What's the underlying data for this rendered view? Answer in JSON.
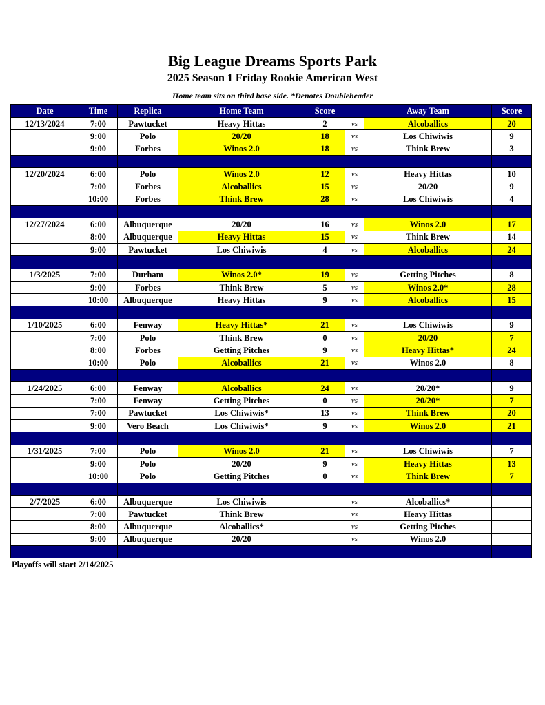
{
  "title": "Big League Dreams Sports Park",
  "subtitle": "2025 Season 1 Friday Rookie American West",
  "note": "Home team sits on third base side.  *Denotes Doubleheader",
  "highlight_color": "#ffff00",
  "header_color": "#000080",
  "columns": [
    "Date",
    "Time",
    "Replica",
    "Home Team",
    "Score",
    "",
    "Away Team",
    "Score"
  ],
  "vs_label": "vs",
  "groups": [
    {
      "date": "12/13/2024",
      "games": [
        {
          "time": "7:00",
          "replica": "Pawtucket",
          "home": "Heavy Hittas",
          "home_score": "2",
          "away": "Alcoballics",
          "away_score": "20",
          "winner": "away"
        },
        {
          "time": "9:00",
          "replica": "Polo",
          "home": "20/20",
          "home_score": "18",
          "away": "Los Chiwiwis",
          "away_score": "9",
          "winner": "home"
        },
        {
          "time": "9:00",
          "replica": "Forbes",
          "home": "Winos 2.0",
          "home_score": "18",
          "away": "Think Brew",
          "away_score": "3",
          "winner": "home"
        }
      ]
    },
    {
      "date": "12/20/2024",
      "games": [
        {
          "time": "6:00",
          "replica": "Polo",
          "home": "Winos 2.0",
          "home_score": "12",
          "away": "Heavy Hittas",
          "away_score": "10",
          "winner": "home"
        },
        {
          "time": "7:00",
          "replica": "Forbes",
          "home": "Alcoballics",
          "home_score": "15",
          "away": "20/20",
          "away_score": "9",
          "winner": "home"
        },
        {
          "time": "10:00",
          "replica": "Forbes",
          "home": "Think Brew",
          "home_score": "28",
          "away": "Los Chiwiwis",
          "away_score": "4",
          "winner": "home"
        }
      ]
    },
    {
      "date": "12/27/2024",
      "games": [
        {
          "time": "6:00",
          "replica": "Albuquerque",
          "home": "20/20",
          "home_score": "16",
          "away": "Winos 2.0",
          "away_score": "17",
          "winner": "away"
        },
        {
          "time": "8:00",
          "replica": "Albuquerque",
          "home": "Heavy Hittas",
          "home_score": "15",
          "away": "Think Brew",
          "away_score": "14",
          "winner": "home"
        },
        {
          "time": "9:00",
          "replica": "Pawtucket",
          "home": "Los Chiwiwis",
          "home_score": "4",
          "away": "Alcoballics",
          "away_score": "24",
          "winner": "away"
        }
      ]
    },
    {
      "date": "1/3/2025",
      "games": [
        {
          "time": "7:00",
          "replica": "Durham",
          "home": "Winos 2.0*",
          "home_score": "19",
          "away": "Getting Pitches",
          "away_score": "8",
          "winner": "home"
        },
        {
          "time": "9:00",
          "replica": "Forbes",
          "home": "Think Brew",
          "home_score": "5",
          "away": "Winos 2.0*",
          "away_score": "28",
          "winner": "away"
        },
        {
          "time": "10:00",
          "replica": "Albuquerque",
          "home": "Heavy Hittas",
          "home_score": "9",
          "away": "Alcoballics",
          "away_score": "15",
          "winner": "away"
        }
      ]
    },
    {
      "date": "1/10/2025",
      "games": [
        {
          "time": "6:00",
          "replica": "Fenway",
          "home": "Heavy Hittas*",
          "home_score": "21",
          "away": "Los Chiwiwis",
          "away_score": "9",
          "winner": "home"
        },
        {
          "time": "7:00",
          "replica": "Polo",
          "home": "Think Brew",
          "home_score": "0",
          "away": "20/20",
          "away_score": "7",
          "winner": "away"
        },
        {
          "time": "8:00",
          "replica": "Forbes",
          "home": "Getting Pitches",
          "home_score": "9",
          "away": "Heavy Hittas*",
          "away_score": "24",
          "winner": "away"
        },
        {
          "time": "10:00",
          "replica": "Polo",
          "home": "Alcoballics",
          "home_score": "21",
          "away": "Winos 2.0",
          "away_score": "8",
          "winner": "home"
        }
      ]
    },
    {
      "date": "1/24/2025",
      "games": [
        {
          "time": "6:00",
          "replica": "Fenway",
          "home": "Alcoballics",
          "home_score": "24",
          "away": "20/20*",
          "away_score": "9",
          "winner": "home"
        },
        {
          "time": "7:00",
          "replica": "Fenway",
          "home": "Getting Pitches",
          "home_score": "0",
          "away": "20/20*",
          "away_score": "7",
          "winner": "away"
        },
        {
          "time": "7:00",
          "replica": "Pawtucket",
          "home": "Los Chiwiwis*",
          "home_score": "13",
          "away": "Think Brew",
          "away_score": "20",
          "winner": "away"
        },
        {
          "time": "9:00",
          "replica": "Vero Beach",
          "home": "Los Chiwiwis*",
          "home_score": "9",
          "away": "Winos 2.0",
          "away_score": "21",
          "winner": "away"
        }
      ]
    },
    {
      "date": "1/31/2025",
      "games": [
        {
          "time": "7:00",
          "replica": "Polo",
          "home": "Winos 2.0",
          "home_score": "21",
          "away": "Los Chiwiwis",
          "away_score": "7",
          "winner": "home"
        },
        {
          "time": "9:00",
          "replica": "Polo",
          "home": "20/20",
          "home_score": "9",
          "away": "Heavy Hittas",
          "away_score": "13",
          "winner": "away"
        },
        {
          "time": "10:00",
          "replica": "Polo",
          "home": "Getting Pitches",
          "home_score": "0",
          "away": "Think Brew",
          "away_score": "7",
          "winner": "away"
        }
      ]
    },
    {
      "date": "2/7/2025",
      "games": [
        {
          "time": "6:00",
          "replica": "Albuquerque",
          "home": "Los Chiwiwis",
          "home_score": "",
          "away": "Alcoballics*",
          "away_score": "",
          "winner": ""
        },
        {
          "time": "7:00",
          "replica": "Pawtucket",
          "home": "Think Brew",
          "home_score": "",
          "away": "Heavy Hittas",
          "away_score": "",
          "winner": ""
        },
        {
          "time": "8:00",
          "replica": "Albuquerque",
          "home": "Alcoballics*",
          "home_score": "",
          "away": "Getting Pitches",
          "away_score": "",
          "winner": ""
        },
        {
          "time": "9:00",
          "replica": "Albuquerque",
          "home": "20/20",
          "home_score": "",
          "away": "Winos 2.0",
          "away_score": "",
          "winner": ""
        }
      ]
    }
  ],
  "footer": "Playoffs will start 2/14/2025"
}
